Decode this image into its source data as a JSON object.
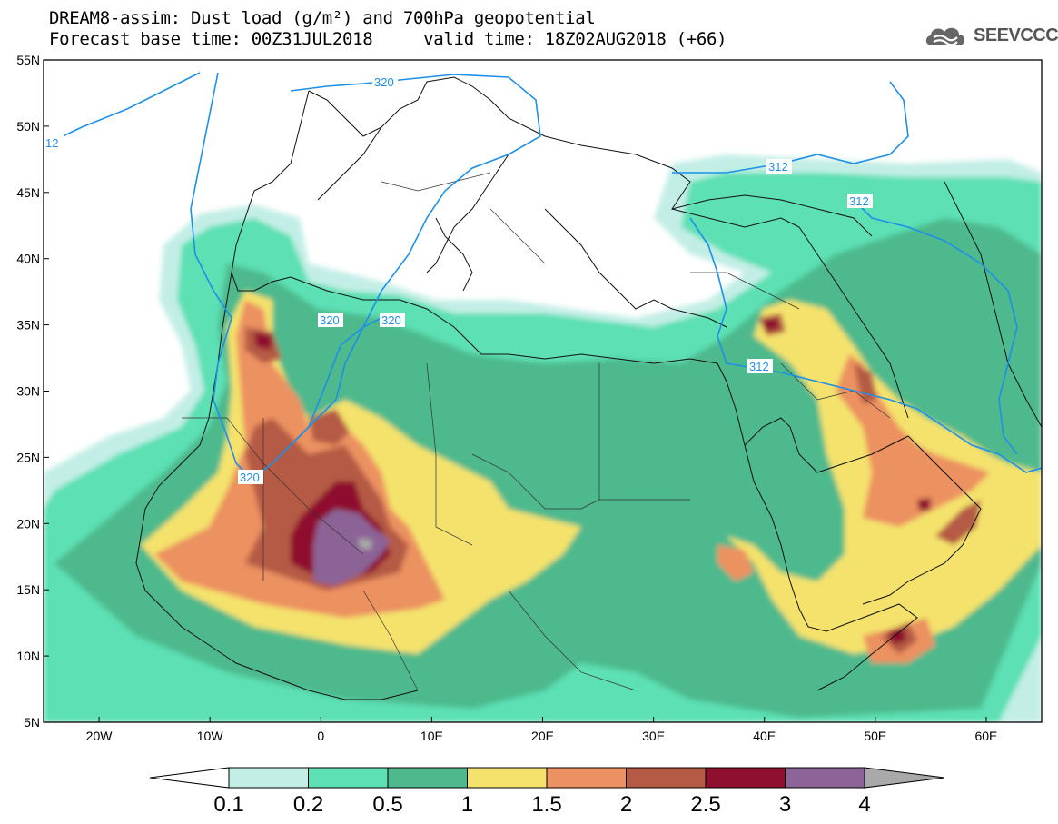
{
  "header": {
    "title_line1": "DREAM8-assim: Dust load (g/m²) and 700hPa geopotential",
    "title_line2": "Forecast base time: 00Z31JUL2018     valid time: 18Z02AUG2018 (+66)",
    "logo_text": "SEEVCCC",
    "logo_icon": "cloud-icon"
  },
  "map": {
    "lat_labels": [
      "55N",
      "50N",
      "45N",
      "40N",
      "35N",
      "30N",
      "25N",
      "20N",
      "15N",
      "10N",
      "5N"
    ],
    "lon_labels": [
      "20W",
      "10W",
      "0",
      "10E",
      "20E",
      "30E",
      "40E",
      "50E",
      "60E"
    ],
    "contour_labels": [
      "320",
      "12",
      "320",
      "320",
      "320",
      "312",
      "312",
      "312"
    ],
    "lon_range": [
      -25,
      65
    ],
    "lat_range": [
      5,
      55
    ]
  },
  "colorbar": {
    "levels": [
      "0.1",
      "0.2",
      "0.5",
      "1",
      "1.5",
      "2",
      "2.5",
      "3",
      "4"
    ],
    "colors": [
      "#c3eee6",
      "#5ce0b4",
      "#4db98c",
      "#f4e26c",
      "#ec9161",
      "#b55a44",
      "#8e0f2e",
      "#8c6497",
      "#a9a9a9"
    ]
  }
}
